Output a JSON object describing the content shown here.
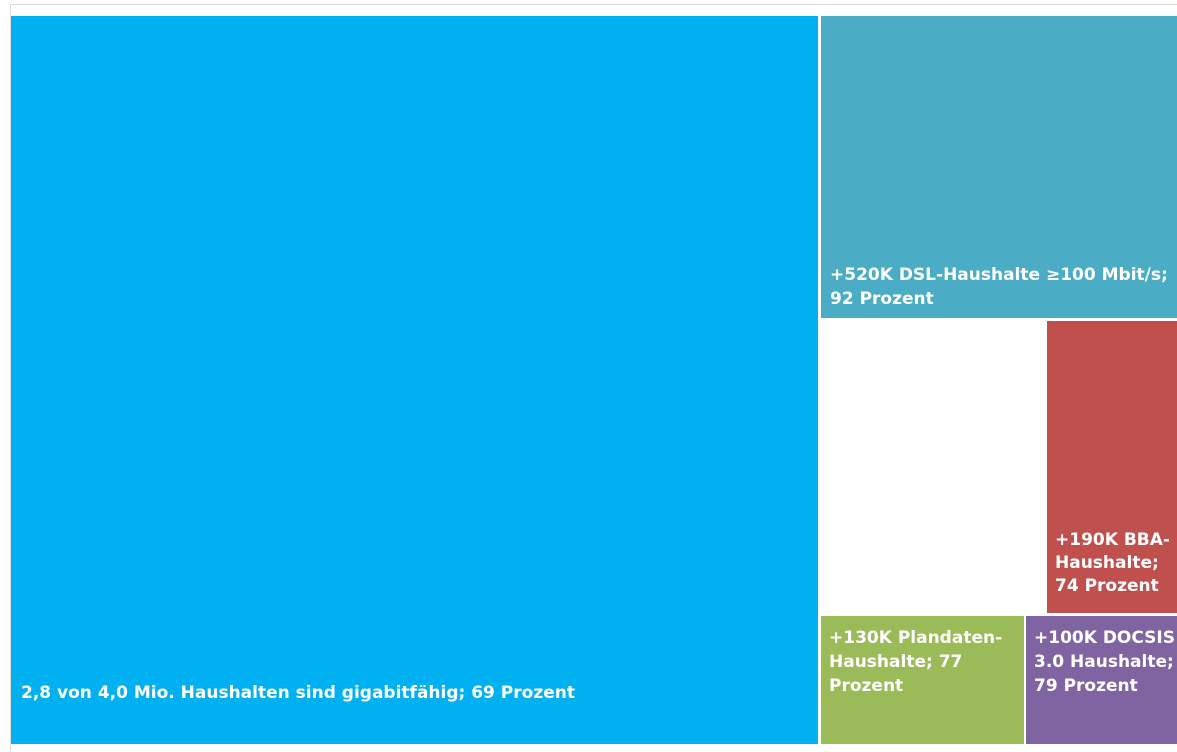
{
  "chart_data": {
    "type": "treemap",
    "title": "",
    "tiles": [
      {
        "id": "gigabit",
        "label_lines": [
          "2,8 von 4,0 Mio. Haushalten sind gigabitfähig; 69 Prozent"
        ],
        "value_households_thousand": 2800,
        "percent": 69,
        "color": "#00B0F0"
      },
      {
        "id": "dsl",
        "label_lines": [
          "+520K DSL-Haushalte ≥100 Mbit/s;",
          "92 Prozent"
        ],
        "value_households_thousand": 520,
        "percent": 92,
        "color": "#4BACC6"
      },
      {
        "id": "bba",
        "label_lines": [
          "+190K BBA-",
          "Haushalte;",
          "74 Prozent"
        ],
        "value_households_thousand": 190,
        "percent": 74,
        "color": "#C0504D"
      },
      {
        "id": "plandaten",
        "label_lines": [
          "+130K Plandaten-",
          "Haushalte; 77",
          "Prozent"
        ],
        "value_households_thousand": 130,
        "percent": 77,
        "color": "#9BBB59"
      },
      {
        "id": "docsis",
        "label_lines": [
          "+100K DOCSIS",
          "3.0 Haushalte;",
          "79 Prozent"
        ],
        "value_households_thousand": 100,
        "percent": 79,
        "color": "#8064A2"
      }
    ]
  }
}
